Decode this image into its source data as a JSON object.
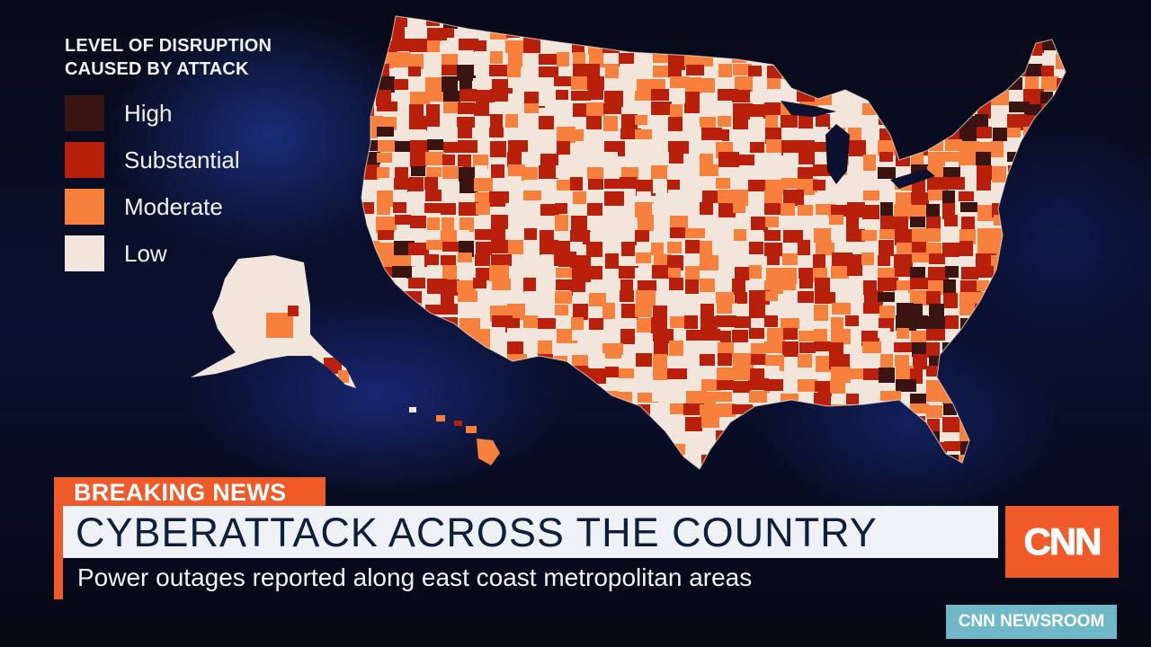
{
  "legend": {
    "title_line1": "LEVEL OF DISRUPTION",
    "title_line2": "CAUSED BY ATTACK",
    "items": [
      {
        "label": "High",
        "color": "#3a1410"
      },
      {
        "label": "Substantial",
        "color": "#b8200c"
      },
      {
        "label": "Moderate",
        "color": "#f6803c"
      },
      {
        "label": "Low",
        "color": "#f2e6dc"
      }
    ]
  },
  "lower_third": {
    "breaking_label": "BREAKING NEWS",
    "headline": "CYBERATTACK ACROSS THE COUNTRY",
    "subheadline": "Power outages reported along east coast metropolitan areas",
    "accent_color": "#f05a28"
  },
  "network": {
    "logo_text": "CNN",
    "program_name": "CNN NEWSROOM"
  },
  "map": {
    "label": "",
    "color_scale": [
      "#3a1410",
      "#b8200c",
      "#f6803c",
      "#f2e6dc"
    ]
  }
}
